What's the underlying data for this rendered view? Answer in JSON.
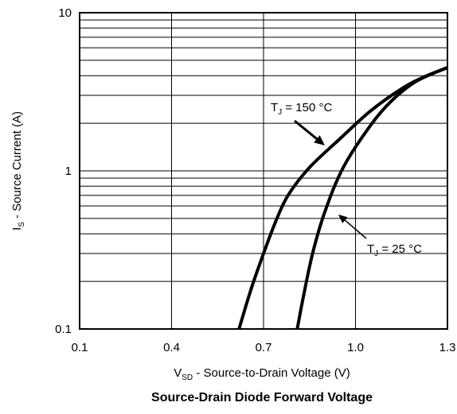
{
  "chart_data": {
    "type": "line",
    "title": "Source-Drain Diode Forward Voltage",
    "xlabel": {
      "main": "V",
      "sub": "SD",
      "rest": " - Source-to-Drain Voltage (V)"
    },
    "ylabel": {
      "main": "I",
      "sub": "S",
      "rest": " - Source Current (A)"
    },
    "xlim": [
      0.1,
      1.3
    ],
    "ylim": [
      0.1,
      10
    ],
    "yscale": "log",
    "grid": true,
    "x_ticks": [
      0.1,
      0.4,
      0.7,
      1.0,
      1.3
    ],
    "x_tick_labels": [
      "0.1",
      "0.4",
      "0.7",
      "1.0",
      "1.3"
    ],
    "y_ticks": [
      0.1,
      1,
      10
    ],
    "y_tick_labels": [
      "0.1",
      "1",
      "10"
    ],
    "series": [
      {
        "name": {
          "main": "T",
          "sub": "J",
          "rest": " = 150 °C"
        },
        "x": [
          0.62,
          0.66,
          0.7,
          0.74,
          0.78,
          0.85,
          0.95,
          1.05,
          1.15,
          1.22,
          1.3
        ],
        "y": [
          0.1,
          0.18,
          0.3,
          0.48,
          0.7,
          1.05,
          1.6,
          2.4,
          3.3,
          3.9,
          4.5
        ]
      },
      {
        "name": {
          "main": "T",
          "sub": "J",
          "rest": " = 25 °C"
        },
        "x": [
          0.81,
          0.83,
          0.86,
          0.9,
          0.96,
          1.05,
          1.12,
          1.2,
          1.3
        ],
        "y": [
          0.1,
          0.16,
          0.3,
          0.55,
          1.05,
          1.95,
          2.8,
          3.7,
          4.5
        ]
      }
    ]
  }
}
